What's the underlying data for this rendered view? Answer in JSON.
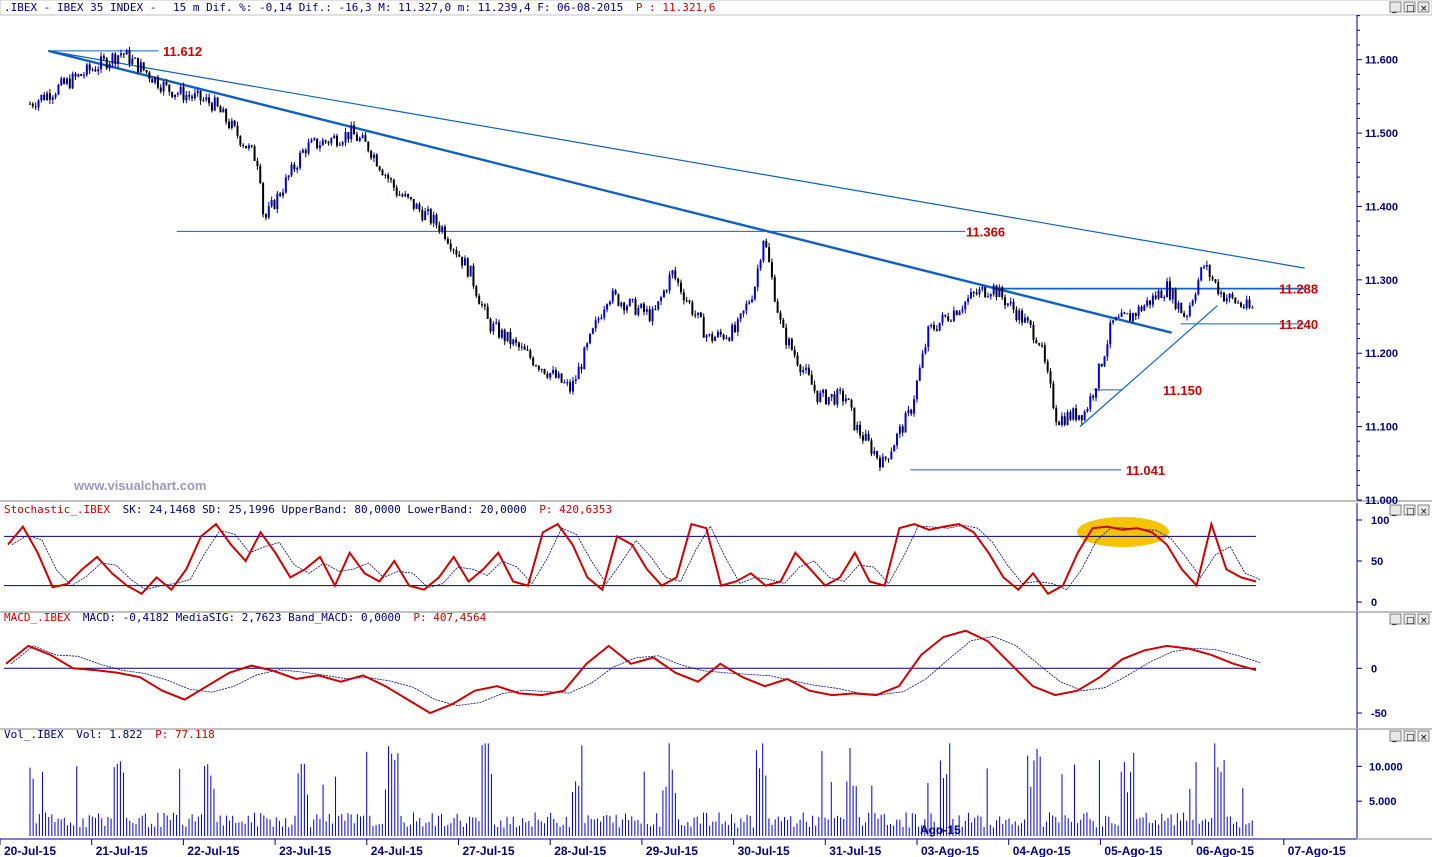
{
  "header": {
    "title_prefix": ".IBEX - IBEX 35 INDEX -",
    "stats": "15 m Dif. %: -0,14 Dif.: -16,3 M: 11.327,0 m: 11.239,4 F: 06-08-2015",
    "price": "P : 11.321,6"
  },
  "watermark": "www.visualchart.com",
  "watermark2": "Ago-15",
  "colors": {
    "up": "#0000cc",
    "down": "#000000",
    "line": "#1060c0",
    "level": "#cc0000",
    "axis": "#000080",
    "stoch": "#cc0000",
    "highlight": "#f5c400"
  },
  "chart_data": [
    {
      "type": "candlestick",
      "name": "IBEX 35 INDEX 15 m",
      "ylim": [
        11000,
        11650
      ],
      "yticks": [
        "11.600",
        "11.500",
        "11.400",
        "11.300",
        "11.200",
        "11.100",
        "11.000"
      ],
      "ytick_values": [
        11600,
        11500,
        11400,
        11300,
        11200,
        11100,
        11000
      ],
      "x_dates": [
        "20-Jul-15",
        "21-Jul-15",
        "22-Jul-15",
        "23-Jul-15",
        "24-Jul-15",
        "27-Jul-15",
        "28-Jul-15",
        "29-Jul-15",
        "30-Jul-15",
        "31-Jul-15",
        "03-Ago-15",
        "04-Ago-15",
        "05-Ago-15",
        "06-Ago-15",
        "07-Ago-15"
      ],
      "close_path": [
        [
          0,
          11540
        ],
        [
          1,
          11610
        ],
        [
          1.5,
          11560
        ],
        [
          2,
          11540
        ],
        [
          2.5,
          11460
        ],
        [
          2.55,
          11380
        ],
        [
          3,
          11480
        ],
        [
          3.5,
          11500
        ],
        [
          3.7,
          11480
        ],
        [
          4,
          11420
        ],
        [
          4.5,
          11370
        ],
        [
          4.8,
          11310
        ],
        [
          5,
          11240
        ],
        [
          5.4,
          11200
        ],
        [
          5.9,
          11150
        ],
        [
          6.3,
          11280
        ],
        [
          6.8,
          11250
        ],
        [
          7,
          11310
        ],
        [
          7.4,
          11220
        ],
        [
          7.7,
          11230
        ],
        [
          7.9,
          11290
        ],
        [
          8,
          11360
        ],
        [
          8.2,
          11230
        ],
        [
          8.6,
          11140
        ],
        [
          8.9,
          11140
        ],
        [
          9,
          11100
        ],
        [
          9.3,
          11050
        ],
        [
          9.6,
          11120
        ],
        [
          9.8,
          11230
        ],
        [
          10,
          11250
        ],
        [
          10.3,
          11280
        ],
        [
          10.5,
          11290
        ],
        [
          10.8,
          11250
        ],
        [
          11,
          11220
        ],
        [
          11.2,
          11110
        ],
        [
          11.5,
          11120
        ],
        [
          11.6,
          11150
        ],
        [
          11.8,
          11240
        ],
        [
          12,
          11250
        ],
        [
          12.4,
          11290
        ],
        [
          12.6,
          11250
        ],
        [
          12.8,
          11320
        ],
        [
          13,
          11280
        ],
        [
          13.3,
          11260
        ]
      ],
      "levels": [
        {
          "label": "11.612",
          "value": 11612
        },
        {
          "label": "11.366",
          "value": 11366
        },
        {
          "label": "11.288",
          "value": 11288
        },
        {
          "label": "11.240",
          "value": 11240
        },
        {
          "label": "11.150",
          "value": 11150
        },
        {
          "label": "11.041",
          "value": 11041
        }
      ],
      "trendlines": [
        {
          "from": [
            0.2,
            11612
          ],
          "to": [
            13.9,
            11316
          ]
        },
        {
          "from": [
            0.2,
            11612
          ],
          "to": [
            12.45,
            11228
          ]
        },
        {
          "from": [
            11.45,
            11100
          ],
          "to": [
            12.95,
            11265
          ]
        }
      ]
    },
    {
      "type": "line",
      "name": "Stochastic_.IBEX",
      "legend": {
        "name": "Stochastic_.IBEX",
        "text1": "SK: 24,1468 SD: 25,1996 UpperBand: 80,0000 LowerBand: 20,0000",
        "p": "P: 420,6353"
      },
      "ylim": [
        0,
        100
      ],
      "yticks": [
        "100",
        "50",
        "0"
      ],
      "ytick_values": [
        100,
        50,
        0
      ],
      "bands": [
        80,
        20
      ],
      "sk": [
        70,
        92,
        60,
        18,
        22,
        40,
        55,
        35,
        20,
        10,
        30,
        15,
        40,
        80,
        95,
        70,
        50,
        85,
        60,
        30,
        40,
        55,
        20,
        60,
        35,
        25,
        50,
        20,
        15,
        30,
        55,
        25,
        40,
        60,
        25,
        20,
        85,
        95,
        70,
        30,
        15,
        80,
        70,
        40,
        20,
        30,
        95,
        90,
        20,
        25,
        35,
        20,
        25,
        60,
        40,
        20,
        30,
        60,
        25,
        20,
        90,
        95,
        88,
        92,
        95,
        85,
        60,
        30,
        15,
        35,
        10,
        20,
        60,
        90,
        92,
        88,
        90,
        85,
        70,
        40,
        20,
        95,
        40,
        30,
        25
      ]
    },
    {
      "type": "line",
      "name": "MACD_.IBEX",
      "legend": {
        "name": "MACD_.IBEX",
        "text1": "MACD: -0,4182 MediaSIG: 2,7623 Band_MACD: 0,0000",
        "p": "P: 407,4564"
      },
      "ylim": [
        -60,
        45
      ],
      "yticks": [
        "0",
        "-50"
      ],
      "ytick_values": [
        0,
        -50
      ],
      "macd": [
        5,
        25,
        15,
        0,
        -2,
        -5,
        -10,
        -25,
        -35,
        -20,
        -5,
        3,
        -3,
        -12,
        -8,
        -15,
        -8,
        -20,
        -35,
        -50,
        -40,
        -25,
        -20,
        -28,
        -30,
        -25,
        5,
        25,
        5,
        12,
        -5,
        -15,
        5,
        -10,
        -20,
        -12,
        -25,
        -30,
        -28,
        -30,
        -20,
        15,
        35,
        42,
        30,
        5,
        -20,
        -30,
        -25,
        -10,
        10,
        20,
        25,
        22,
        15,
        5,
        -2
      ]
    },
    {
      "type": "bar",
      "name": "Vol_.IBEX",
      "legend": {
        "name": "Vol_.IBEX",
        "text1": "Vol: 1.822",
        "p": "P: 77.118"
      },
      "ylim": [
        0,
        13500
      ],
      "yticks": [
        "10.000",
        "5.000"
      ],
      "ytick_values": [
        10000,
        5000
      ]
    }
  ]
}
